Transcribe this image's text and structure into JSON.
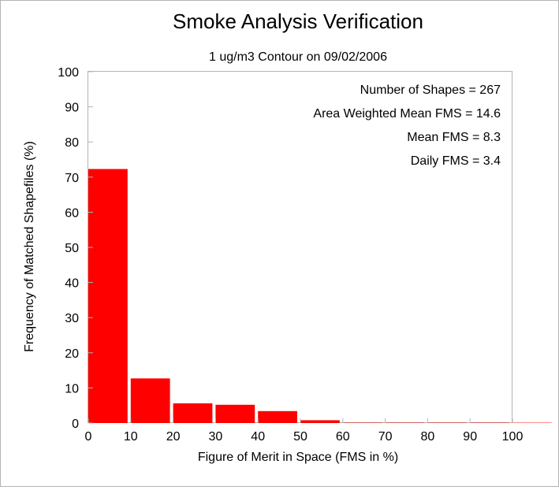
{
  "chart_data": {
    "type": "bar",
    "title": "Smoke Analysis Verification",
    "subtitle": "1 ug/m3 Contour on 09/02/2006",
    "xlabel": "Figure of Merit in Space (FMS in %)",
    "ylabel": "Frequency of Matched Shapefiles (%)",
    "xlim": [
      0,
      100
    ],
    "ylim": [
      0,
      100
    ],
    "x_ticks": [
      "0",
      "10",
      "20",
      "30",
      "40",
      "50",
      "60",
      "70",
      "80",
      "90",
      "100"
    ],
    "y_ticks": [
      "0",
      "10",
      "20",
      "30",
      "40",
      "50",
      "60",
      "70",
      "80",
      "90",
      "100"
    ],
    "bin_starts": [
      0,
      10,
      20,
      30,
      40,
      50,
      60,
      70,
      80,
      90,
      100
    ],
    "values": [
      72.3,
      12.7,
      5.6,
      5.2,
      3.4,
      0.8,
      0.1,
      0.1,
      0.1,
      0.1,
      0.1
    ],
    "bar_color": "#ff0000",
    "grid": false,
    "annotations": [
      "Number of Shapes = 267",
      "Area Weighted Mean FMS = 14.6",
      "Mean FMS = 8.3",
      "Daily FMS = 3.4"
    ]
  }
}
